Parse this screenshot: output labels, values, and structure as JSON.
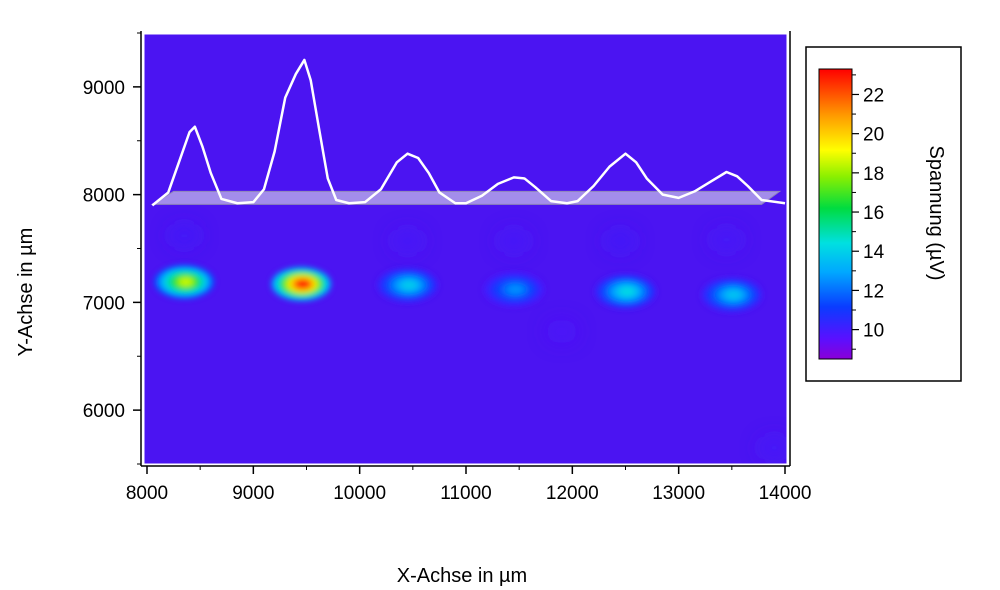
{
  "chart_data": {
    "type": "heatmap",
    "title": "",
    "xlabel": "X-Achse in µm",
    "ylabel": "Y-Achse in µm",
    "xlim": [
      8000,
      14000
    ],
    "ylim": [
      5500,
      9500
    ],
    "xticks": [
      8000,
      9000,
      10000,
      11000,
      12000,
      13000,
      14000
    ],
    "yticks": [
      6000,
      7000,
      8000,
      9000
    ],
    "grid": false,
    "background_value": 9.2,
    "colorbar": {
      "label": "Spannung (µV)",
      "range": [
        8.5,
        23.3
      ],
      "ticks": [
        10,
        12,
        14,
        16,
        18,
        20,
        22
      ],
      "colormap": "rainbow",
      "placement": "right"
    },
    "hotspots": [
      {
        "x": 8350,
        "y": 7190,
        "value": 18.5
      },
      {
        "x": 9450,
        "y": 7170,
        "value": 23.0
      },
      {
        "x": 10450,
        "y": 7160,
        "value": 13.8
      },
      {
        "x": 11450,
        "y": 7120,
        "value": 12.5
      },
      {
        "x": 12500,
        "y": 7100,
        "value": 14.2
      },
      {
        "x": 13500,
        "y": 7070,
        "value": 13.6
      }
    ],
    "faint_spots": [
      {
        "x": 8350,
        "y": 7620,
        "value": 10.2
      },
      {
        "x": 10450,
        "y": 7570,
        "value": 10.0
      },
      {
        "x": 11450,
        "y": 7570,
        "value": 10.0
      },
      {
        "x": 12450,
        "y": 7570,
        "value": 10.2
      },
      {
        "x": 13450,
        "y": 7580,
        "value": 10.0
      },
      {
        "x": 11900,
        "y": 6730,
        "value": 9.8
      },
      {
        "x": 13900,
        "y": 5650,
        "value": 10.0
      }
    ],
    "profile_line": {
      "baseline_y": 7910,
      "color": "#ffffff",
      "points": [
        [
          8050,
          7900
        ],
        [
          8200,
          8020
        ],
        [
          8300,
          8300
        ],
        [
          8400,
          8580
        ],
        [
          8450,
          8630
        ],
        [
          8520,
          8450
        ],
        [
          8600,
          8200
        ],
        [
          8700,
          7960
        ],
        [
          8850,
          7920
        ],
        [
          9000,
          7930
        ],
        [
          9100,
          8050
        ],
        [
          9200,
          8400
        ],
        [
          9300,
          8900
        ],
        [
          9400,
          9120
        ],
        [
          9480,
          9250
        ],
        [
          9540,
          9060
        ],
        [
          9620,
          8600
        ],
        [
          9700,
          8150
        ],
        [
          9780,
          7950
        ],
        [
          9900,
          7920
        ],
        [
          10050,
          7930
        ],
        [
          10200,
          8050
        ],
        [
          10350,
          8300
        ],
        [
          10450,
          8380
        ],
        [
          10550,
          8340
        ],
        [
          10650,
          8200
        ],
        [
          10750,
          8020
        ],
        [
          10900,
          7920
        ],
        [
          11000,
          7920
        ],
        [
          11150,
          7990
        ],
        [
          11300,
          8100
        ],
        [
          11450,
          8160
        ],
        [
          11550,
          8150
        ],
        [
          11650,
          8070
        ],
        [
          11800,
          7940
        ],
        [
          11950,
          7920
        ],
        [
          12050,
          7940
        ],
        [
          12200,
          8080
        ],
        [
          12350,
          8260
        ],
        [
          12500,
          8380
        ],
        [
          12600,
          8300
        ],
        [
          12700,
          8150
        ],
        [
          12850,
          8000
        ],
        [
          13000,
          7970
        ],
        [
          13150,
          8030
        ],
        [
          13300,
          8120
        ],
        [
          13450,
          8210
        ],
        [
          13550,
          8170
        ],
        [
          13650,
          8080
        ],
        [
          13780,
          7950
        ],
        [
          14000,
          7920
        ]
      ]
    }
  }
}
